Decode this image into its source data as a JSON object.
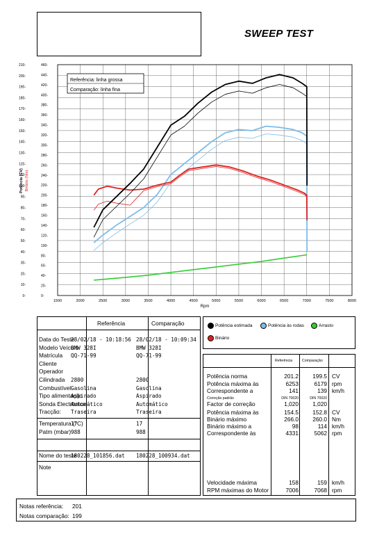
{
  "header": {
    "title": "SWEEP TEST"
  },
  "chart_data": {
    "type": "line",
    "xlabel": "Rpm",
    "ylabel_left": "Potência (CV)",
    "ylabel_right": "Binário (Nm)",
    "xlim": [
      1500,
      8000
    ],
    "ylim_power": [
      0,
      210
    ],
    "ylim_torque": [
      0,
      460
    ],
    "x_ticks": [
      "1500",
      "2000",
      "2500",
      "3000",
      "3500",
      "4000",
      "4500",
      "5000",
      "5500",
      "6000",
      "6500",
      "7000",
      "7500",
      "8000"
    ],
    "power_ticks": [
      "0",
      "10",
      "20",
      "30",
      "40",
      "50",
      "60",
      "70",
      "80",
      "90",
      "100",
      "110",
      "120",
      "130",
      "140",
      "150",
      "160",
      "170",
      "180",
      "190",
      "200",
      "210"
    ],
    "torque_ticks": [
      "0",
      "20",
      "40",
      "60",
      "80",
      "100",
      "120",
      "140",
      "160",
      "180",
      "200",
      "220",
      "240",
      "260",
      "280",
      "300",
      "320",
      "340",
      "360",
      "380",
      "400",
      "420",
      "440",
      "460"
    ],
    "notes": [
      "Referência: linha grossa",
      "Comparação: linha fina"
    ],
    "legend": [
      "Potência estimada",
      "Potência às rodas",
      "Arrasto",
      "Binário"
    ],
    "colors": {
      "estimated": "#000000",
      "wheel": "#7bbde8",
      "drag": "#33cc33",
      "torque": "#dd2222"
    },
    "series": [
      {
        "name": "Potência estimada",
        "color": "#000000",
        "rpm": [
          2300,
          2500,
          2800,
          3100,
          3400,
          3700,
          4000,
          4300,
          4600,
          4900,
          5200,
          5500,
          5800,
          6100,
          6400,
          6700,
          6900,
          7000,
          7006
        ],
        "values": [
          62,
          78,
          90,
          102,
          115,
          135,
          155,
          163,
          175,
          185,
          192,
          195,
          193,
          198,
          201,
          198,
          193,
          190,
          100
        ]
      },
      {
        "name": "Potência às rodas",
        "color": "#7bbde8",
        "rpm": [
          2300,
          2500,
          2800,
          3100,
          3400,
          3700,
          4000,
          4300,
          4600,
          4900,
          5200,
          5500,
          5800,
          6100,
          6400,
          6700,
          6900,
          7000,
          7006
        ],
        "values": [
          48,
          55,
          64,
          72,
          80,
          92,
          110,
          120,
          130,
          140,
          148,
          151,
          150,
          154,
          153,
          151,
          148,
          145,
          40
        ]
      },
      {
        "name": "Arrasto",
        "color": "#33cc33",
        "rpm": [
          2300,
          3000,
          3500,
          4000,
          4500,
          5000,
          5500,
          6000,
          6500,
          7000
        ],
        "values": [
          14,
          16.5,
          18.5,
          21,
          23.5,
          26,
          28.5,
          31,
          34,
          37
        ]
      },
      {
        "name": "Binário",
        "color": "#dd2222",
        "rpm": [
          2300,
          2400,
          2600,
          2800,
          3100,
          3400,
          3700,
          4000,
          4200,
          4400,
          4700,
          5000,
          5300,
          5600,
          5900,
          6200,
          6500,
          6800,
          6950,
          7000,
          7006
        ],
        "torque": [
          200,
          212,
          218,
          214,
          210,
          212,
          220,
          226,
          240,
          252,
          256,
          260,
          256,
          248,
          238,
          230,
          220,
          210,
          204,
          200,
          150
        ]
      }
    ]
  },
  "legend_labels": {
    "estimated": "Potência estimada",
    "wheel": "Potência às rodas",
    "drag": "Arrasto",
    "torque": "Binário"
  },
  "info": {
    "head_ref": "Referência",
    "head_comp": "Comparação",
    "rows1": [
      {
        "label": "Data do Teste",
        "ref": "28/02/18 - 10:18:56",
        "comp": "28/02/18 - 10:09:34"
      },
      {
        "label": "Modelo Veículo",
        "ref": "BMW 328I",
        "comp": "BMW 328I"
      },
      {
        "label": "Matrícula",
        "ref": "QQ-71-99",
        "comp": "QQ-71-99"
      },
      {
        "label": "Cliente",
        "ref": "",
        "comp": ""
      },
      {
        "label": "Operador",
        "ref": "",
        "comp": ""
      },
      {
        "label": "Cilindrada",
        "ref": "2800",
        "comp": "2800"
      },
      {
        "label": "Combustível",
        "ref": "Gasolina",
        "comp": "Gasolina"
      },
      {
        "label": "Tipo alimentação",
        "ref": "Aspirado",
        "comp": "Aspirado"
      },
      {
        "label": "Sonda Electrónica",
        "ref": "Automático",
        "comp": "Automático"
      },
      {
        "label": "Tracção:",
        "ref": "Traseira",
        "comp": "Traseira"
      }
    ],
    "rows2": [
      {
        "label": "Temperatura (°C)",
        "ref": "17",
        "comp": "17"
      },
      {
        "label": "Patm (mbar)",
        "ref": "988",
        "comp": "988"
      }
    ],
    "test_name": {
      "label": "Nome do teste",
      "ref": "180228_101856.dat",
      "comp": "180228_100934.dat"
    },
    "note_label": "Note"
  },
  "results": {
    "head_ref": "Referência",
    "head_comp": "Comparação",
    "rows": [
      {
        "label": "Potência norma",
        "ref": "201.2",
        "comp": "199.5",
        "unit": "CV",
        "small": false
      },
      {
        "label": "Potência máxima às",
        "ref": "6253",
        "comp": "6179",
        "unit": "rpm",
        "small": false
      },
      {
        "label": "Correspondente a",
        "ref": "141",
        "comp": "139",
        "unit": "km/h",
        "small": false
      },
      {
        "label": "Correção padrão",
        "ref": "DIN 70020",
        "comp": "DIN 70020",
        "unit": "",
        "small": true
      },
      {
        "label": "Factor de correção",
        "ref": "1,020",
        "comp": "1,020",
        "unit": "",
        "small": false
      },
      {
        "label": "Potência máxima às",
        "ref": "154.5",
        "comp": "152.8",
        "unit": "CV",
        "small": false
      },
      {
        "label": "Binário máximo",
        "ref": "266.0",
        "comp": "260.0",
        "unit": "Nm",
        "small": false
      },
      {
        "label": "Binário máximo a",
        "ref": "98",
        "comp": "114",
        "unit": "km/h",
        "small": false
      },
      {
        "label": "Correspondente às",
        "ref": "4331",
        "comp": "5062",
        "unit": "rpm",
        "small": false
      }
    ],
    "bottom": [
      {
        "label": "Velocidade máxima",
        "ref": "158",
        "comp": "159",
        "unit": "km/h"
      },
      {
        "label": "RPM máximas do Motor",
        "ref": "7006",
        "comp": "7068",
        "unit": "rpm"
      }
    ]
  },
  "footer": {
    "notes_ref_label": "Notas referência:",
    "notes_ref_value": "201",
    "notes_comp_label": "Notas comparação:",
    "notes_comp_value": "199"
  }
}
